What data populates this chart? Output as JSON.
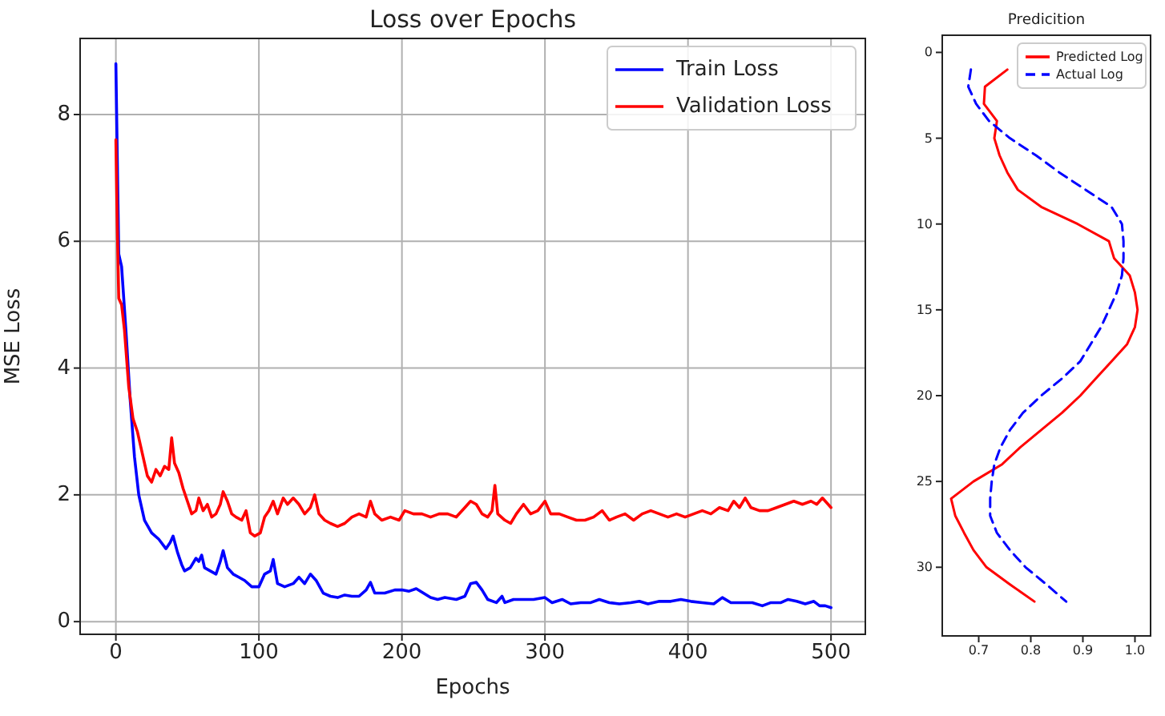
{
  "chart_data": [
    {
      "type": "line",
      "title": "Loss over Epochs",
      "xlabel": "Epochs",
      "ylabel": "MSE Loss",
      "xlim": [
        -25,
        524
      ],
      "xticks": [
        0,
        100,
        200,
        300,
        400,
        500
      ],
      "ylim": [
        -0.2,
        9.2
      ],
      "yticks": [
        0,
        2,
        4,
        6,
        8
      ],
      "grid": true,
      "legend": "top right",
      "line_style": "solid",
      "series": [
        {
          "name": "Train Loss",
          "color": "#0000ff",
          "x": [
            0,
            1,
            2,
            4,
            7,
            10,
            13,
            16,
            20,
            25,
            30,
            35,
            38,
            40,
            43,
            46,
            48,
            52,
            56,
            58,
            60,
            62,
            66,
            70,
            73,
            75,
            78,
            82,
            86,
            90,
            95,
            100,
            104,
            108,
            110,
            113,
            118,
            124,
            128,
            132,
            136,
            140,
            145,
            150,
            155,
            160,
            165,
            170,
            175,
            178,
            181,
            188,
            195,
            200,
            205,
            210,
            215,
            220,
            225,
            230,
            238,
            244,
            248,
            252,
            256,
            260,
            266,
            270,
            272,
            278,
            285,
            292,
            300,
            305,
            312,
            318,
            325,
            332,
            338,
            345,
            352,
            360,
            366,
            372,
            380,
            388,
            395,
            402,
            410,
            418,
            424,
            430,
            438,
            445,
            452,
            458,
            465,
            470,
            476,
            482,
            488,
            492,
            496,
            500
          ],
          "values": [
            8.8,
            null,
            5.8,
            5.6,
            4.6,
            3.5,
            2.6,
            2.0,
            1.6,
            1.4,
            1.3,
            1.15,
            1.25,
            1.35,
            1.1,
            0.9,
            0.8,
            0.85,
            1.0,
            0.95,
            1.05,
            0.85,
            0.8,
            0.75,
            0.95,
            1.12,
            0.85,
            0.75,
            0.7,
            0.65,
            0.55,
            0.55,
            0.75,
            0.8,
            0.98,
            0.6,
            0.55,
            0.6,
            0.7,
            0.6,
            0.75,
            0.65,
            0.45,
            0.4,
            0.38,
            0.42,
            0.4,
            0.4,
            0.5,
            0.62,
            0.45,
            0.45,
            0.5,
            0.5,
            0.48,
            0.52,
            0.45,
            0.38,
            0.35,
            0.38,
            0.35,
            0.4,
            0.6,
            0.62,
            0.5,
            0.35,
            0.3,
            0.4,
            0.3,
            0.35,
            0.35,
            0.35,
            0.38,
            0.3,
            0.35,
            0.28,
            0.3,
            0.3,
            0.35,
            0.3,
            0.28,
            0.3,
            0.32,
            0.28,
            0.32,
            0.32,
            0.35,
            0.32,
            0.3,
            0.28,
            0.38,
            0.3,
            0.3,
            0.3,
            0.25,
            0.3,
            0.3,
            0.35,
            0.32,
            0.28,
            0.32,
            0.25,
            0.25,
            0.22
          ]
        },
        {
          "name": "Validation Loss",
          "color": "#ff0000",
          "x": [
            0,
            1,
            2,
            4,
            6,
            9,
            12,
            15,
            18,
            22,
            25,
            28,
            31,
            34,
            37,
            39,
            41,
            44,
            47,
            50,
            53,
            56,
            58,
            61,
            64,
            67,
            70,
            73,
            75,
            78,
            81,
            84,
            88,
            91,
            94,
            97,
            101,
            104,
            107,
            110,
            113,
            117,
            120,
            124,
            128,
            132,
            136,
            139,
            142,
            146,
            150,
            155,
            160,
            165,
            170,
            175,
            178,
            181,
            186,
            192,
            198,
            202,
            208,
            214,
            220,
            226,
            232,
            238,
            244,
            248,
            252,
            256,
            260,
            263,
            265,
            267,
            272,
            276,
            280,
            285,
            290,
            295,
            300,
            304,
            310,
            316,
            322,
            328,
            334,
            340,
            345,
            350,
            356,
            362,
            368,
            374,
            380,
            386,
            392,
            398,
            404,
            410,
            416,
            422,
            428,
            432,
            436,
            440,
            444,
            450,
            456,
            462,
            468,
            474,
            480,
            486,
            490,
            494,
            498,
            500
          ],
          "values": [
            7.6,
            6.2,
            5.1,
            5.0,
            4.6,
            3.7,
            3.2,
            3.0,
            2.7,
            2.3,
            2.2,
            2.4,
            2.3,
            2.45,
            2.4,
            2.9,
            2.5,
            2.35,
            2.1,
            1.9,
            1.7,
            1.75,
            1.95,
            1.75,
            1.85,
            1.65,
            1.7,
            1.85,
            2.05,
            1.9,
            1.7,
            1.65,
            1.6,
            1.75,
            1.4,
            1.35,
            1.4,
            1.65,
            1.75,
            1.9,
            1.7,
            1.95,
            1.85,
            1.95,
            1.85,
            1.7,
            1.8,
            2.0,
            1.7,
            1.6,
            1.55,
            1.5,
            1.55,
            1.65,
            1.7,
            1.65,
            1.9,
            1.7,
            1.6,
            1.65,
            1.6,
            1.75,
            1.7,
            1.7,
            1.65,
            1.7,
            1.7,
            1.65,
            1.8,
            1.9,
            1.85,
            1.7,
            1.65,
            1.75,
            2.15,
            1.7,
            1.6,
            1.55,
            1.7,
            1.85,
            1.7,
            1.75,
            1.9,
            1.7,
            1.7,
            1.65,
            1.6,
            1.6,
            1.65,
            1.75,
            1.6,
            1.65,
            1.7,
            1.6,
            1.7,
            1.75,
            1.7,
            1.65,
            1.7,
            1.65,
            1.7,
            1.75,
            1.7,
            1.8,
            1.75,
            1.9,
            1.8,
            1.95,
            1.8,
            1.75,
            1.75,
            1.8,
            1.85,
            1.9,
            1.85,
            1.9,
            1.85,
            1.95,
            1.85,
            1.8
          ]
        }
      ]
    },
    {
      "type": "line",
      "title": "Predicition",
      "xlim": [
        0.63,
        1.03
      ],
      "xticks": [
        0.7,
        0.8,
        0.9,
        {
          "value": 1.0,
          "label": "1.0"
        }
      ],
      "ylim": [
        34,
        -1
      ],
      "yticks": [
        0,
        5,
        10,
        15,
        20,
        25,
        30
      ],
      "grid": false,
      "legend": "top right",
      "series": [
        {
          "name": "Predicted Log",
          "color": "#ff0000",
          "line_style": "solid",
          "x": [
            0.755,
            0.712,
            0.71,
            0.735,
            0.73,
            0.74,
            0.755,
            0.775,
            0.82,
            0.89,
            0.95,
            0.96,
            0.99,
            1.0,
            1.005,
            1.0,
            0.985,
            0.955,
            0.925,
            0.895,
            0.86,
            0.82,
            0.78,
            0.745,
            0.69,
            0.647,
            0.655,
            0.672,
            0.69,
            0.715,
            0.76,
            0.807
          ],
          "values": [
            1,
            2,
            3,
            4,
            5,
            6,
            7,
            8,
            9,
            10,
            11,
            12,
            13,
            14,
            15,
            16,
            17,
            18,
            19,
            20,
            21,
            22,
            23,
            24,
            25,
            26,
            27,
            28,
            29,
            30,
            31,
            32
          ]
        },
        {
          "name": "Actual Log",
          "color": "#0000ff",
          "line_style": "dashed",
          "x": [
            0.685,
            0.68,
            0.695,
            0.72,
            0.76,
            0.81,
            0.855,
            0.905,
            0.955,
            0.975,
            0.978,
            0.978,
            0.975,
            0.965,
            0.95,
            0.935,
            0.915,
            0.895,
            0.86,
            0.82,
            0.785,
            0.76,
            0.742,
            0.73,
            0.725,
            0.722,
            0.722,
            0.735,
            0.76,
            0.79,
            0.83,
            0.868
          ],
          "values": [
            1,
            2,
            3,
            4,
            5,
            6,
            7,
            8,
            9,
            10,
            11,
            12,
            13,
            14,
            15,
            16,
            17,
            18,
            19,
            20,
            21,
            22,
            23,
            24,
            25,
            26,
            27,
            28,
            29,
            30,
            31,
            32
          ]
        }
      ]
    }
  ]
}
